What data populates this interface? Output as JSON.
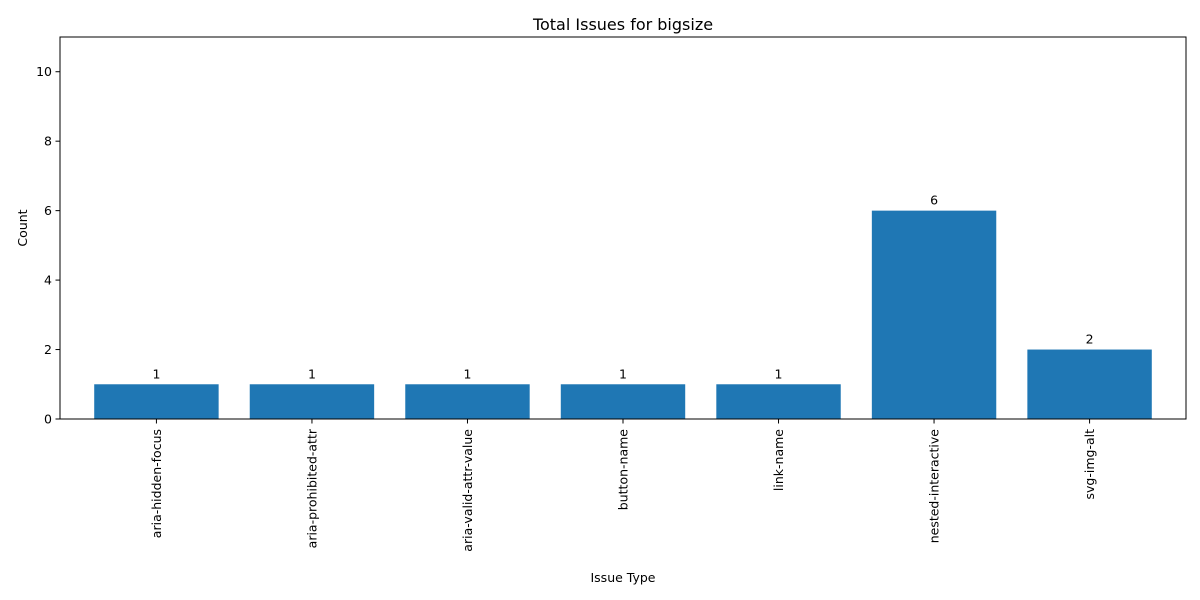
{
  "chart_data": {
    "type": "bar",
    "title": "Total Issues for bigsize",
    "xlabel": "Issue Type",
    "ylabel": "Count",
    "categories": [
      "aria-hidden-focus",
      "aria-prohibited-attr",
      "aria-valid-attr-value",
      "button-name",
      "link-name",
      "nested-interactive",
      "svg-img-alt"
    ],
    "values": [
      1,
      1,
      1,
      1,
      1,
      6,
      2
    ],
    "data_labels": [
      "1",
      "1",
      "1",
      "1",
      "1",
      "6",
      "2"
    ],
    "ylim": [
      0,
      11
    ],
    "yticks": [
      0,
      2,
      4,
      6,
      8,
      10
    ],
    "ytick_labels": [
      "0",
      "2",
      "4",
      "6",
      "8",
      "10"
    ],
    "bar_color": "#1f77b4",
    "grid": false,
    "legend": "none"
  }
}
